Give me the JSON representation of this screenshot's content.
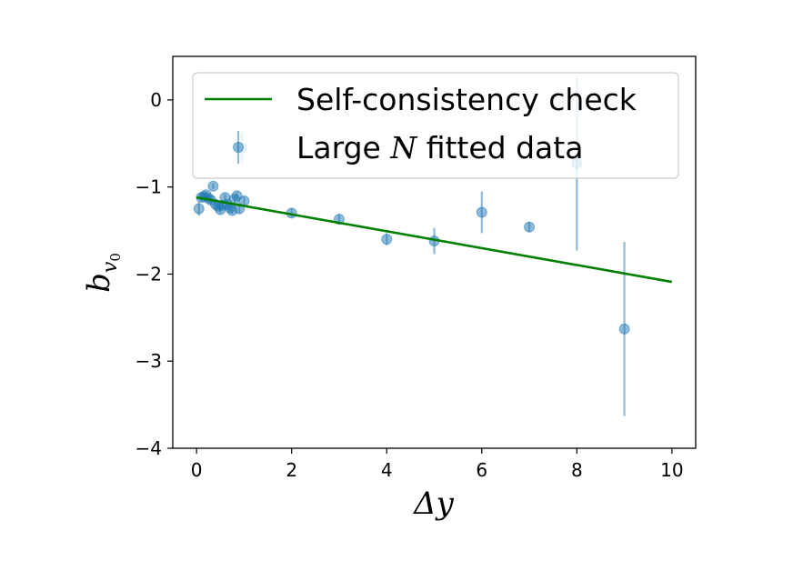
{
  "chart_data": {
    "type": "scatter",
    "title": "",
    "xlabel": "Δy",
    "ylabel": {
      "base": "b",
      "sub": "v",
      "subsub": "0"
    },
    "xlim": [
      -0.5,
      10.5
    ],
    "ylim": [
      -4,
      0.5
    ],
    "xticks": [
      0,
      2,
      4,
      6,
      8,
      10
    ],
    "xtick_labels": [
      "0",
      "2",
      "4",
      "6",
      "8",
      "10"
    ],
    "yticks": [
      0,
      -1,
      -2,
      -3,
      -4
    ],
    "ytick_labels": [
      "0",
      "−1",
      "−2",
      "−3",
      "−4"
    ],
    "grid": false,
    "legend": {
      "position": "top",
      "entries": [
        {
          "key": "line",
          "label": "Self-consistency check"
        },
        {
          "key": "points",
          "label_pre": "Large ",
          "label_ital": "N",
          "label_post": " fitted data"
        }
      ]
    },
    "series": [
      {
        "key": "line",
        "type": "line",
        "color": "#008000",
        "x": [
          0,
          10
        ],
        "y": [
          -1.12,
          -2.09
        ]
      },
      {
        "key": "points",
        "type": "errorbar",
        "color": "#1f77b4",
        "points": [
          {
            "x": 0.05,
            "y": -1.25,
            "err": 0.08
          },
          {
            "x": 0.1,
            "y": -1.12,
            "err": 0.04
          },
          {
            "x": 0.15,
            "y": -1.11,
            "err": 0.04
          },
          {
            "x": 0.2,
            "y": -1.09,
            "err": 0.04
          },
          {
            "x": 0.25,
            "y": -1.13,
            "err": 0.04
          },
          {
            "x": 0.3,
            "y": -1.15,
            "err": 0.04
          },
          {
            "x": 0.35,
            "y": -0.99,
            "err": 0.03
          },
          {
            "x": 0.4,
            "y": -1.2,
            "err": 0.04
          },
          {
            "x": 0.45,
            "y": -1.22,
            "err": 0.04
          },
          {
            "x": 0.5,
            "y": -1.26,
            "err": 0.04
          },
          {
            "x": 0.55,
            "y": -1.21,
            "err": 0.04
          },
          {
            "x": 0.6,
            "y": -1.12,
            "err": 0.04
          },
          {
            "x": 0.65,
            "y": -1.2,
            "err": 0.04
          },
          {
            "x": 0.7,
            "y": -1.24,
            "err": 0.04
          },
          {
            "x": 0.75,
            "y": -1.27,
            "err": 0.04
          },
          {
            "x": 0.8,
            "y": -1.14,
            "err": 0.04
          },
          {
            "x": 0.85,
            "y": -1.1,
            "err": 0.04
          },
          {
            "x": 0.9,
            "y": -1.25,
            "err": 0.05
          },
          {
            "x": 0.95,
            "y": -0.55,
            "err": 0.18
          },
          {
            "x": 1.0,
            "y": -1.16,
            "err": 0.05
          },
          {
            "x": 2.0,
            "y": -1.3,
            "err": 0.05
          },
          {
            "x": 3.0,
            "y": -1.37,
            "err": 0.06
          },
          {
            "x": 4.0,
            "y": -1.6,
            "err": 0.07
          },
          {
            "x": 5.0,
            "y": -1.62,
            "err": 0.15
          },
          {
            "x": 6.0,
            "y": -1.29,
            "err": 0.24
          },
          {
            "x": 7.0,
            "y": -1.46,
            "err": 0.06
          },
          {
            "x": 8.0,
            "y": -0.73,
            "err": 1.0
          },
          {
            "x": 9.0,
            "y": -2.63,
            "err": 1.0
          }
        ]
      }
    ]
  }
}
